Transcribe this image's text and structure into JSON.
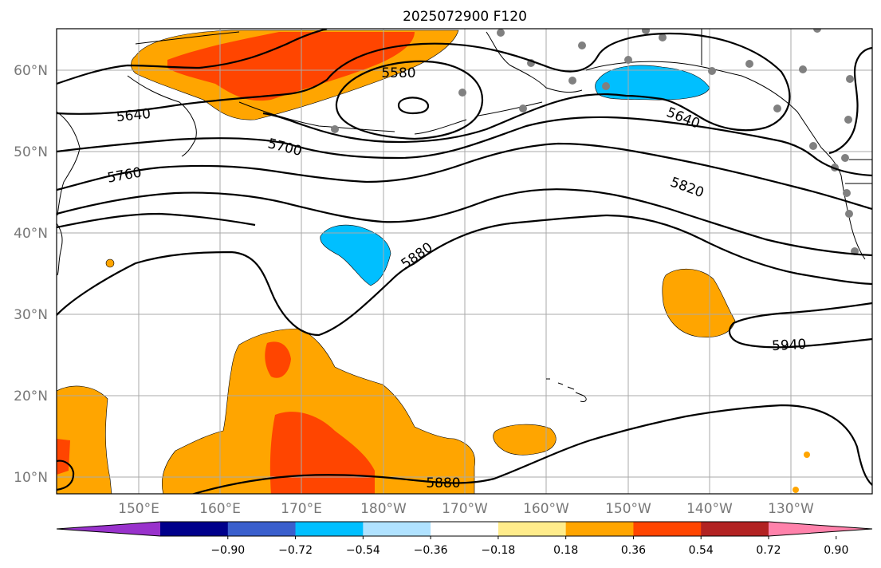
{
  "title": "2025072900 F120",
  "x_axis": {
    "ticks": [
      "150°E",
      "160°E",
      "170°E",
      "180°W",
      "170°W",
      "160°W",
      "150°W",
      "140°W",
      "130°W"
    ]
  },
  "y_axis": {
    "ticks": [
      "60°N",
      "50°N",
      "40°N",
      "30°N",
      "20°N",
      "10°N"
    ]
  },
  "contour_labels": [
    "5580",
    "5640",
    "5640",
    "5700",
    "5760",
    "5820",
    "5880",
    "5880",
    "5940"
  ],
  "colorbar": {
    "colors": [
      "#9932cc",
      "#00008b",
      "#3a5fcd",
      "#00bfff",
      "#b0e2ff",
      "#ffffff",
      "#ffec8b",
      "#ffa500",
      "#ff4500",
      "#b22222",
      "#ff82ab"
    ],
    "labels": [
      "−0.90",
      "−0.72",
      "−0.54",
      "−0.36",
      "−0.18",
      "0.18",
      "0.36",
      "0.54",
      "0.72",
      "0.90"
    ]
  },
  "colors": {
    "orange": "#ffa500",
    "red_orange": "#ff4500",
    "sky_blue": "#00bfff",
    "station_gray": "#808080"
  }
}
